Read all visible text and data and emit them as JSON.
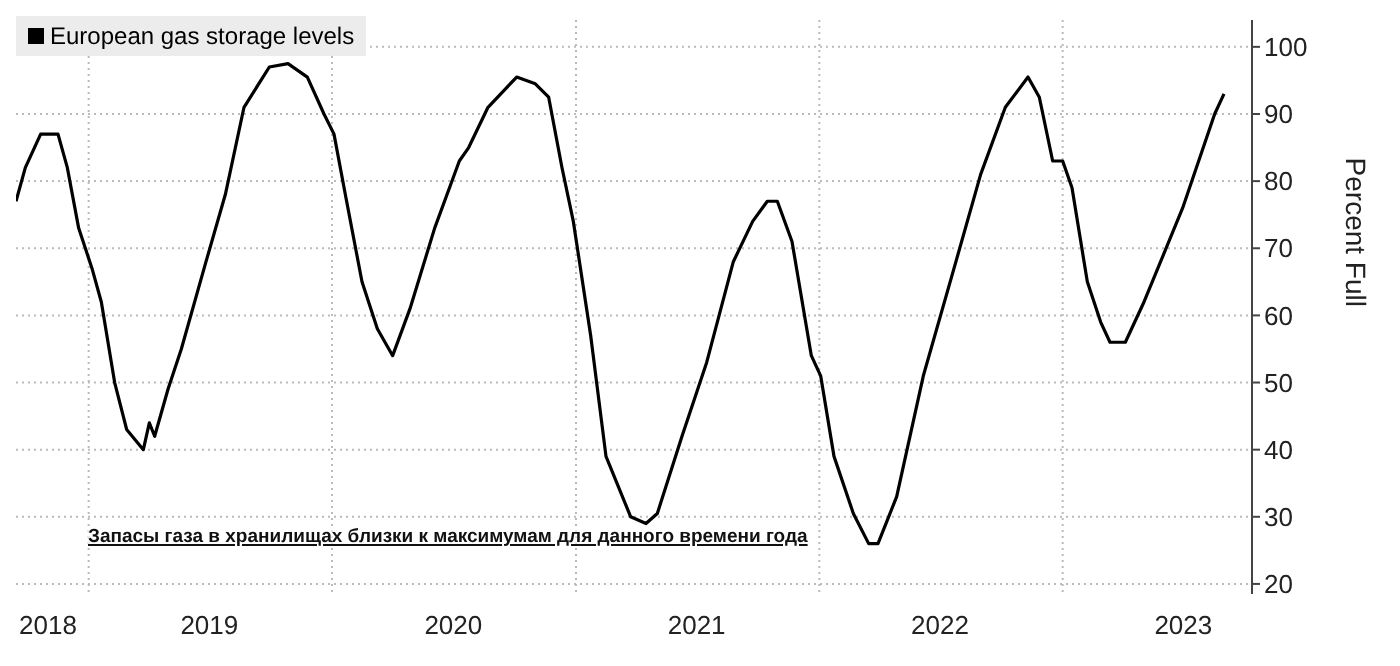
{
  "chart_data": {
    "type": "line",
    "ylabel": "Percent Full",
    "legend": "top left",
    "grid": true,
    "marker": "none",
    "line_style": "solid",
    "annotations": [
      "Запасы газа в хранилищах близки к максимумам для данного времени года"
    ],
    "xlim": [
      "2018-09-14",
      "2023-10-12"
    ],
    "ylim": [
      18.5,
      104
    ],
    "yticks": [
      20,
      30,
      40,
      50,
      60,
      70,
      80,
      90,
      100
    ],
    "xticks": [
      {
        "value": "2018-11-01",
        "label": "2018"
      },
      {
        "value": "2019-01-01",
        "label": null
      },
      {
        "value": "2019-07-01",
        "label": "2019"
      },
      {
        "value": "2020-01-01",
        "label": null
      },
      {
        "value": "2020-07-01",
        "label": "2020"
      },
      {
        "value": "2021-01-01",
        "label": null
      },
      {
        "value": "2021-07-01",
        "label": "2021"
      },
      {
        "value": "2022-01-01",
        "label": null
      },
      {
        "value": "2022-07-01",
        "label": "2022"
      },
      {
        "value": "2023-01-01",
        "label": null
      },
      {
        "value": "2023-07-01",
        "label": "2023"
      }
    ],
    "x": [
      "2018-09-14",
      "2018-09-28",
      "2018-10-21",
      "2018-11-16",
      "2018-11-30",
      "2018-12-17",
      "2019-01-06",
      "2019-01-20",
      "2019-02-09",
      "2019-02-27",
      "2019-03-24",
      "2019-04-02",
      "2019-04-10",
      "2019-04-30",
      "2019-05-20",
      "2019-06-26",
      "2019-07-25",
      "2019-08-22",
      "2019-09-29",
      "2019-10-27",
      "2019-11-25",
      "2019-12-20",
      "2020-01-04",
      "2020-01-21",
      "2020-02-15",
      "2020-03-09",
      "2020-04-01",
      "2020-04-27",
      "2020-06-03",
      "2020-07-10",
      "2020-07-24",
      "2020-08-22",
      "2020-10-04",
      "2020-11-01",
      "2020-11-21",
      "2020-12-11",
      "2020-12-28",
      "2021-01-23",
      "2021-02-15",
      "2021-03-24",
      "2021-04-16",
      "2021-05-03",
      "2021-06-09",
      "2021-07-16",
      "2021-08-25",
      "2021-09-23",
      "2021-10-15",
      "2021-10-30",
      "2021-11-21",
      "2021-12-20",
      "2022-01-03",
      "2022-01-23",
      "2022-02-21",
      "2022-03-16",
      "2022-03-30",
      "2022-04-27",
      "2022-06-06",
      "2022-07-22",
      "2022-08-31",
      "2022-10-07",
      "2022-11-10",
      "2022-11-27",
      "2022-12-17",
      "2023-01-01",
      "2023-01-15",
      "2023-02-07",
      "2023-02-27",
      "2023-03-13",
      "2023-04-05",
      "2023-05-03",
      "2023-06-30",
      "2023-08-17",
      "2023-08-31"
    ],
    "series": [
      {
        "name": "European gas storage levels",
        "color": "#000000",
        "values": [
          77,
          82,
          87,
          87,
          82,
          73,
          67,
          62,
          50,
          43,
          40,
          44,
          42,
          49,
          55,
          68,
          78,
          91,
          97,
          97.5,
          95.5,
          90,
          87,
          78,
          65,
          58,
          54,
          61,
          73,
          83,
          85,
          91,
          95.5,
          94.5,
          92.5,
          82,
          74,
          57,
          39,
          30,
          29,
          30.5,
          42,
          53,
          68,
          74,
          77,
          77,
          71,
          54,
          51,
          39,
          30.5,
          26,
          26,
          33,
          51,
          67,
          81,
          91,
          95.5,
          92.5,
          83,
          83,
          79,
          65,
          59,
          56,
          56,
          62,
          76,
          90,
          93
        ]
      }
    ]
  }
}
